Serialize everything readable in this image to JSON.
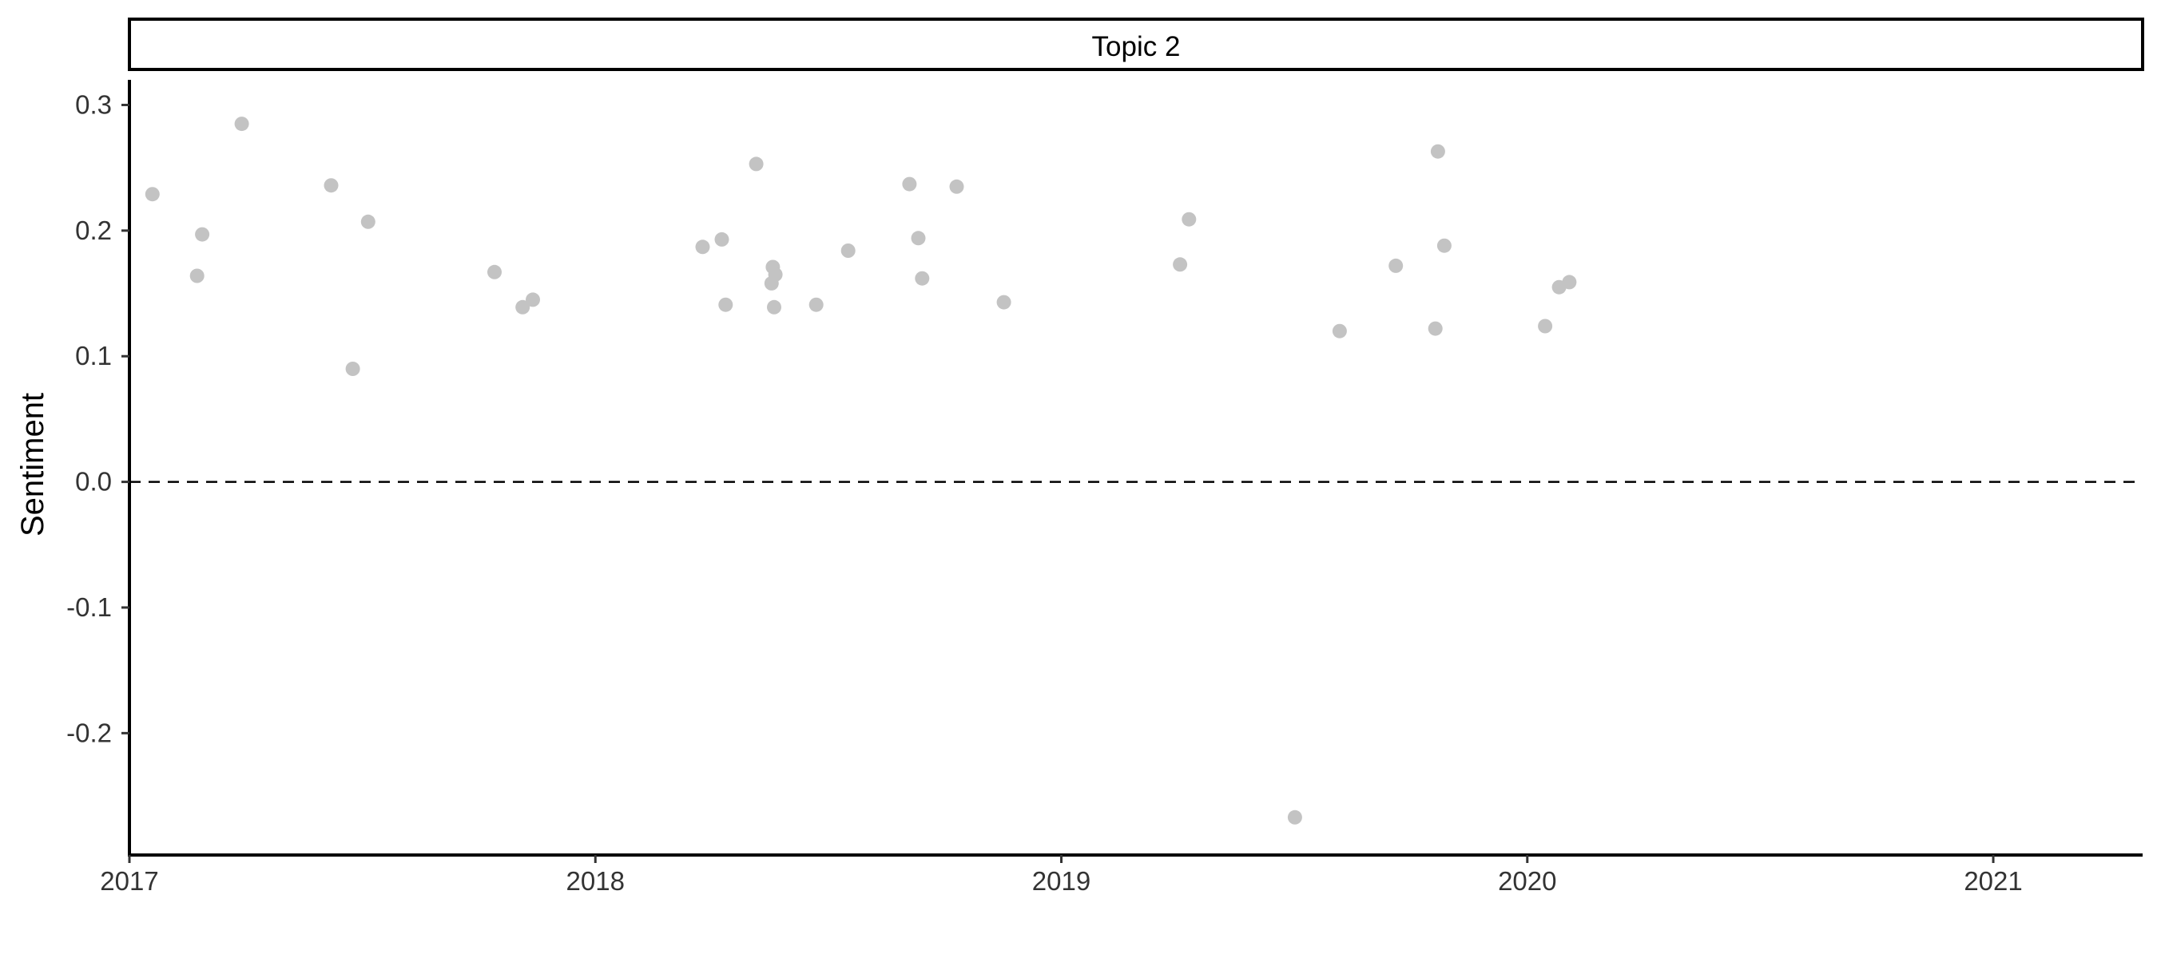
{
  "chart_data": {
    "type": "scatter",
    "facet_title": "Topic 2",
    "xlabel": "",
    "ylabel": "Sentiment",
    "x_ticks": [
      "2017",
      "2018",
      "2019",
      "2020",
      "2021"
    ],
    "y_ticks": [
      "0.3",
      "0.2",
      "0.1",
      "0.0",
      "-0.1",
      "-0.2"
    ],
    "xlim": [
      "2017-01-01",
      "2021-04-28"
    ],
    "ylim": [
      -0.297,
      0.32
    ],
    "reference_line": {
      "y": 0.0,
      "style": "dashed",
      "color": "#000000"
    },
    "grid": false,
    "legend": "none",
    "point_color": "#c3c3c3",
    "points": [
      {
        "x": "2017-01-19",
        "y": 0.229
      },
      {
        "x": "2017-02-23",
        "y": 0.164
      },
      {
        "x": "2017-02-27",
        "y": 0.197
      },
      {
        "x": "2017-03-30",
        "y": 0.285
      },
      {
        "x": "2017-06-08",
        "y": 0.236
      },
      {
        "x": "2017-06-25",
        "y": 0.09
      },
      {
        "x": "2017-07-07",
        "y": 0.207
      },
      {
        "x": "2017-10-14",
        "y": 0.167
      },
      {
        "x": "2017-11-05",
        "y": 0.139
      },
      {
        "x": "2017-11-13",
        "y": 0.145
      },
      {
        "x": "2018-03-26",
        "y": 0.187
      },
      {
        "x": "2018-04-10",
        "y": 0.193
      },
      {
        "x": "2018-04-13",
        "y": 0.141
      },
      {
        "x": "2018-05-07",
        "y": 0.253
      },
      {
        "x": "2018-05-19",
        "y": 0.158
      },
      {
        "x": "2018-05-20",
        "y": 0.171
      },
      {
        "x": "2018-05-21",
        "y": 0.139
      },
      {
        "x": "2018-05-22",
        "y": 0.165
      },
      {
        "x": "2018-06-23",
        "y": 0.141
      },
      {
        "x": "2018-07-18",
        "y": 0.184
      },
      {
        "x": "2018-09-04",
        "y": 0.237
      },
      {
        "x": "2018-09-11",
        "y": 0.194
      },
      {
        "x": "2018-09-14",
        "y": 0.162
      },
      {
        "x": "2018-10-11",
        "y": 0.235
      },
      {
        "x": "2018-11-17",
        "y": 0.143
      },
      {
        "x": "2019-04-04",
        "y": 0.173
      },
      {
        "x": "2019-04-11",
        "y": 0.209
      },
      {
        "x": "2019-07-03",
        "y": -0.267
      },
      {
        "x": "2019-08-07",
        "y": 0.12
      },
      {
        "x": "2019-09-20",
        "y": 0.172
      },
      {
        "x": "2019-10-21",
        "y": 0.122
      },
      {
        "x": "2019-10-23",
        "y": 0.263
      },
      {
        "x": "2019-10-28",
        "y": 0.188
      },
      {
        "x": "2020-01-15",
        "y": 0.124
      },
      {
        "x": "2020-01-26",
        "y": 0.155
      },
      {
        "x": "2020-02-03",
        "y": 0.159
      }
    ]
  }
}
